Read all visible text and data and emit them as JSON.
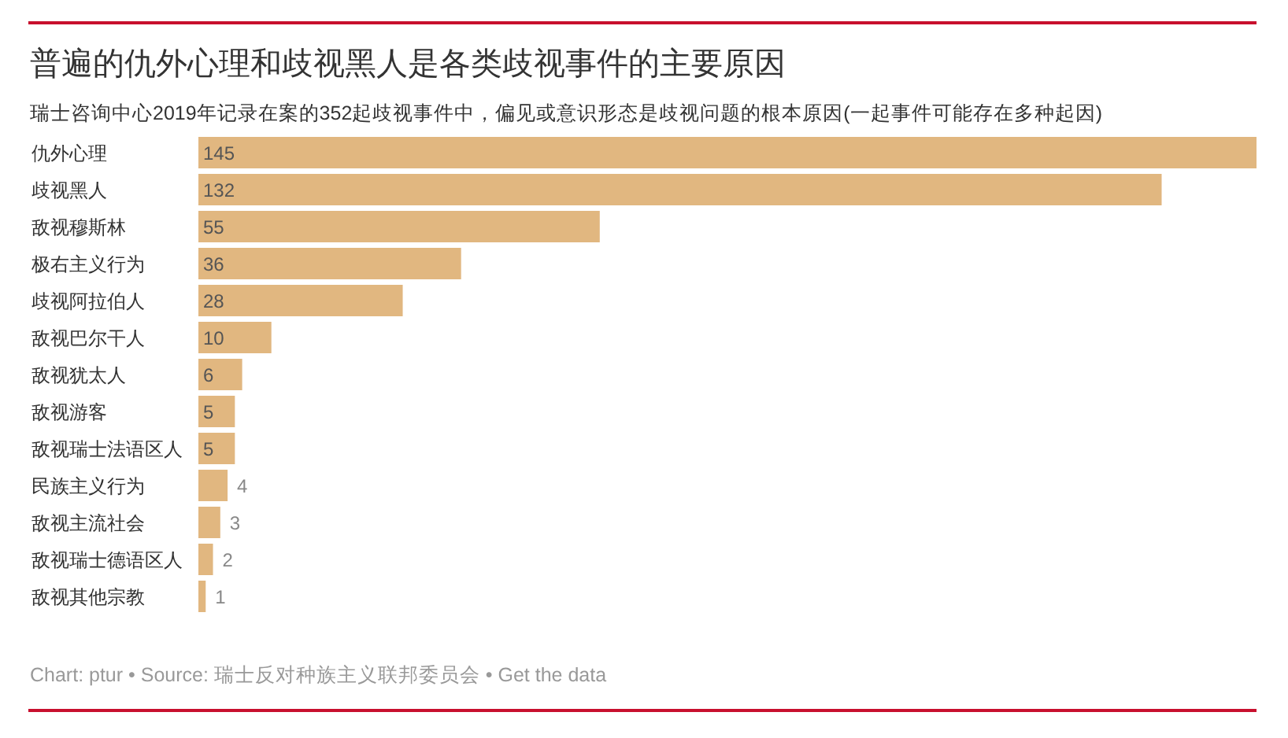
{
  "chart_data": {
    "type": "bar",
    "orientation": "horizontal",
    "title": "普遍的仇外心理和歧视黑人是各类歧视事件的主要原因",
    "subtitle": "瑞士咨询中心2019年记录在案的352起歧视事件中，偏见或意识形态是歧视问题的根本原因(一起事件可能存在多种起因)",
    "categories": [
      "仇外心理",
      "歧视黑人",
      "敌视穆斯林",
      "极右主义行为",
      "歧视阿拉伯人",
      "敌视巴尔干人",
      "敌视犹太人",
      "敌视游客",
      "敌视瑞士法语区人",
      "民族主义行为",
      "敌视主流社会",
      "敌视瑞士德语区人",
      "敌视其他宗教"
    ],
    "values": [
      145,
      132,
      55,
      36,
      28,
      10,
      6,
      5,
      5,
      4,
      3,
      2,
      1
    ],
    "color": "#e1b780",
    "data_labels": true,
    "annotations": [
      "Chart: ptur • Source: 瑞士反对种族主义联邦委员会 • Get the data"
    ]
  }
}
